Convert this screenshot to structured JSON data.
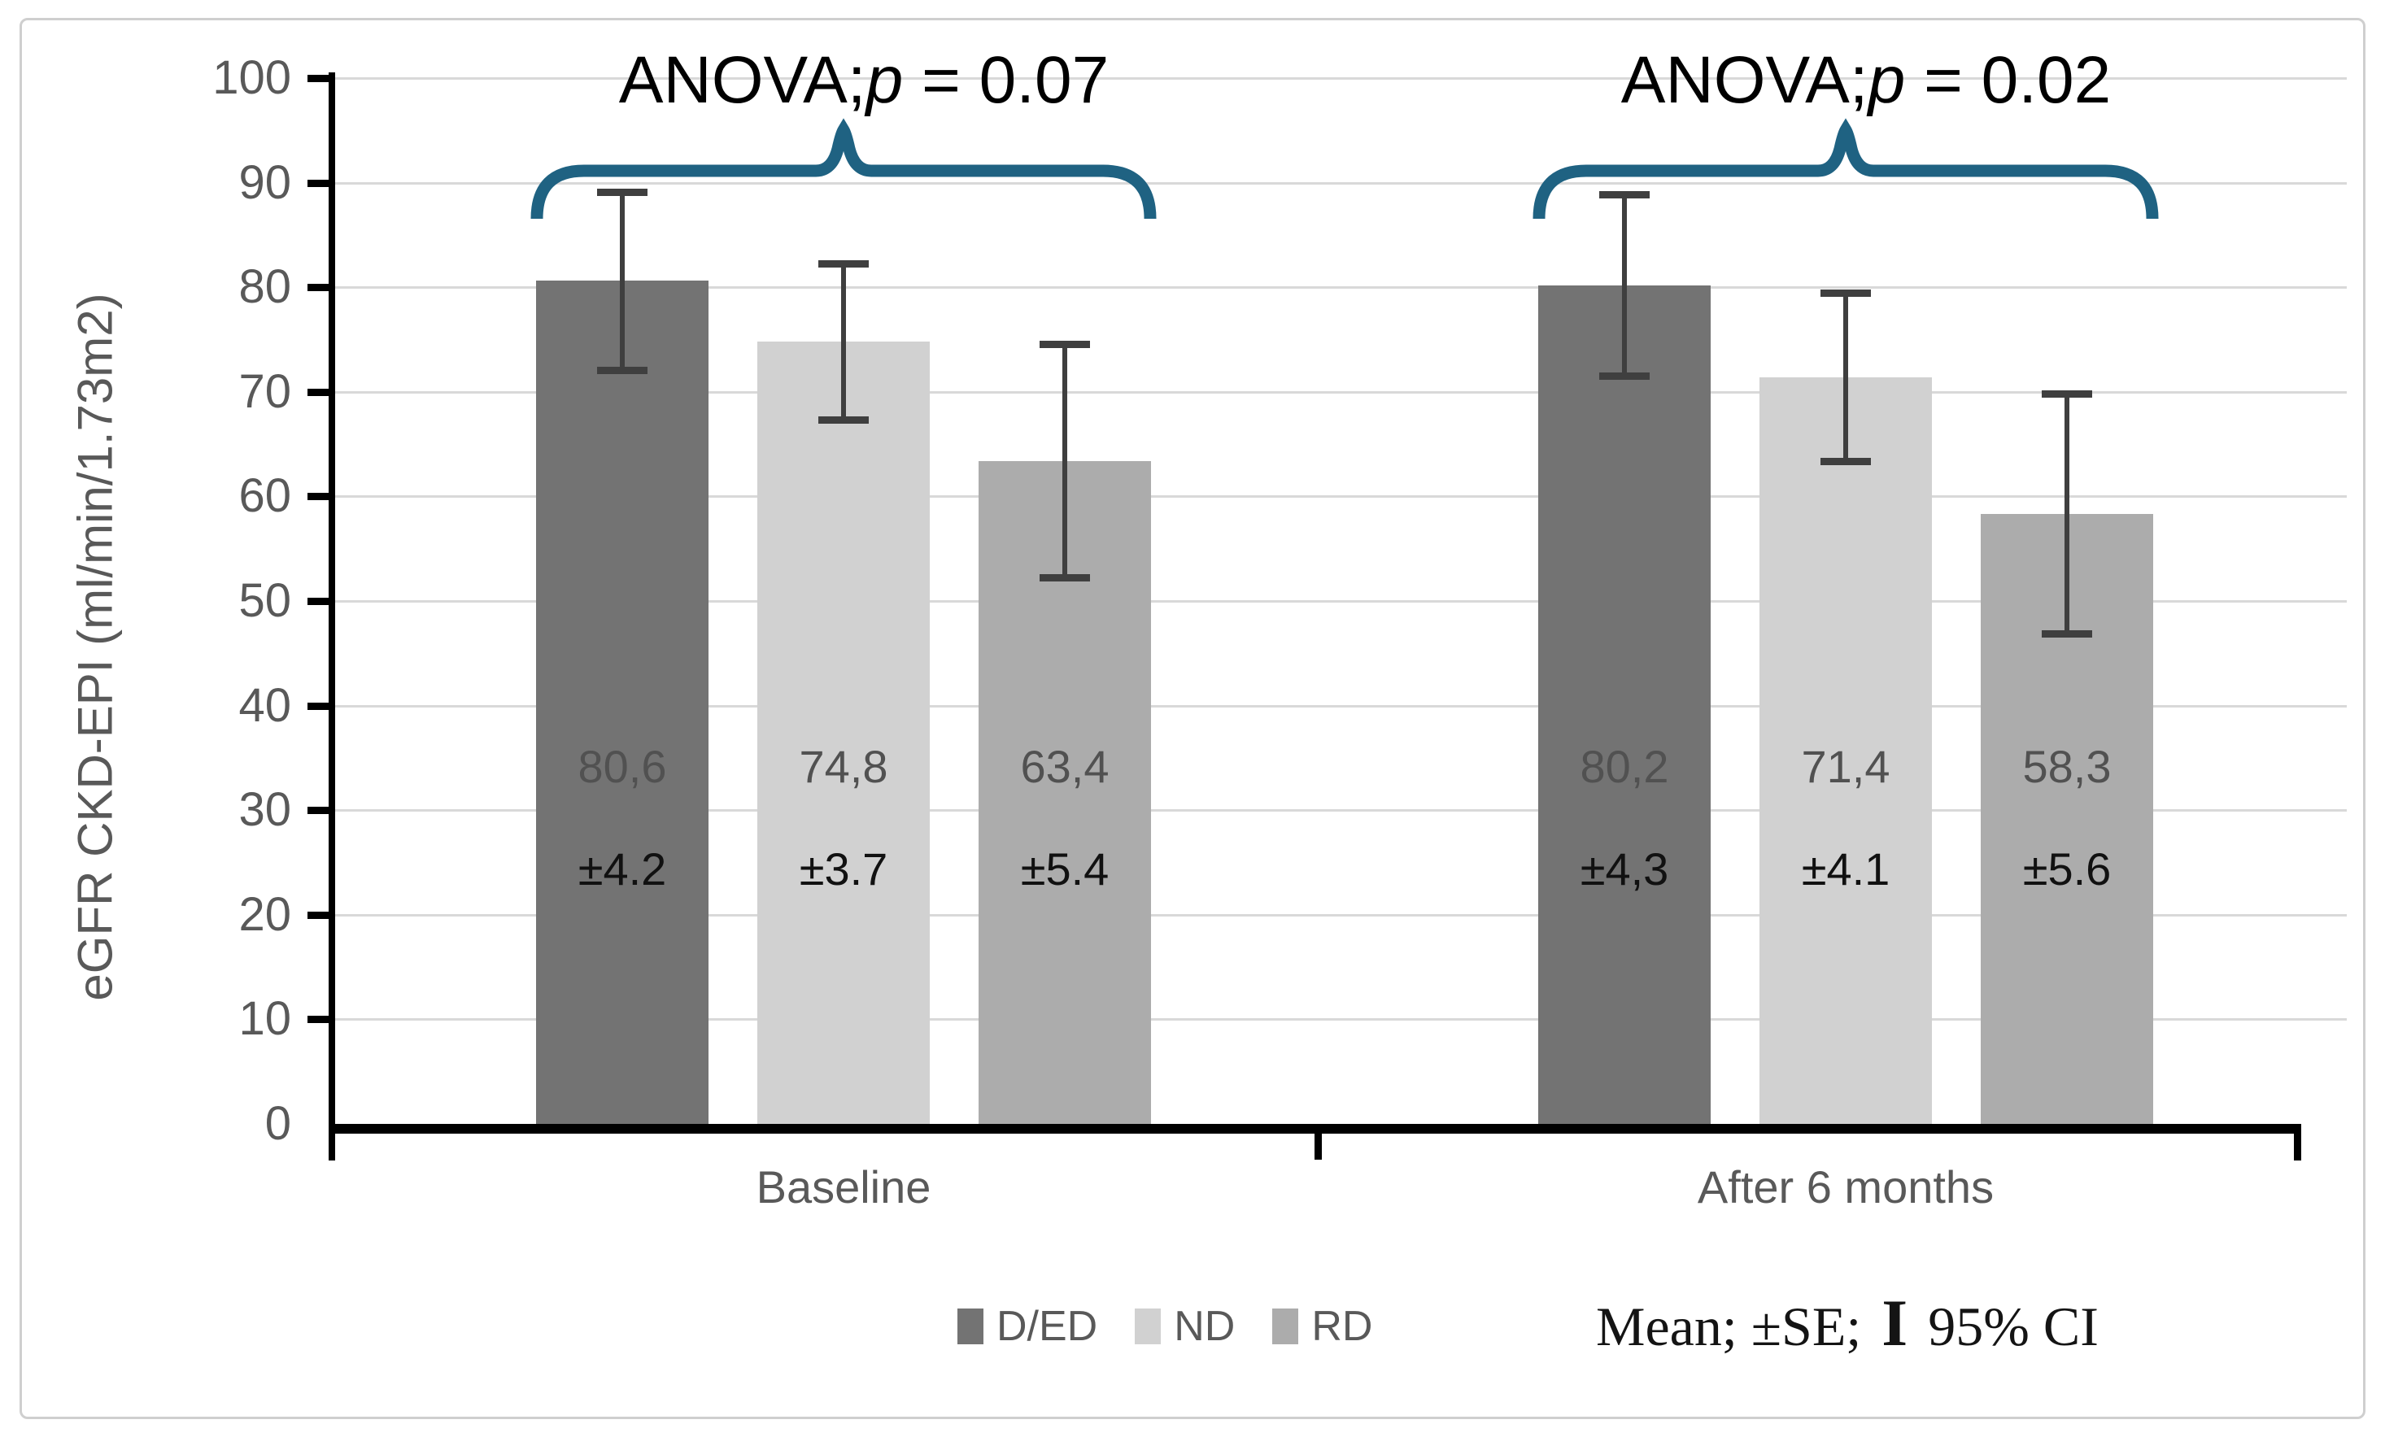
{
  "figure": {
    "background": "#ffffff",
    "border_color": "#cfcfcf"
  },
  "chart_data": {
    "type": "bar",
    "title": "",
    "ylabel": "eGFR CKD-EPI (ml/min/1.73m2)",
    "xlabel": "",
    "ylim": [
      0,
      100
    ],
    "yticks": [
      0,
      10,
      20,
      30,
      40,
      50,
      60,
      70,
      80,
      90,
      100
    ],
    "grid": "horizontal",
    "legend_position": "bottom",
    "error_bars": "95% CI",
    "categories": [
      "Baseline",
      "After 6 months"
    ],
    "series_names": [
      "D/ED",
      "ND",
      "RD"
    ],
    "series_colors": {
      "D/ED": "#737373",
      "ND": "#d1d1d1",
      "RD": "#acacac"
    },
    "groups": [
      {
        "label": "Baseline",
        "anova": {
          "prefix": "ANOVA;",
          "italic": "p",
          "rest": " = 0.07"
        },
        "bars": [
          {
            "series": "D/ED",
            "mean": 80.6,
            "se": 4.2,
            "mean_label": "80,6",
            "se_label": "±4.2",
            "ci_low": 72.0,
            "ci_high": 89.1
          },
          {
            "series": "ND",
            "mean": 74.8,
            "se": 3.7,
            "mean_label": "74,8",
            "se_label": "±3.7",
            "ci_low": 67.3,
            "ci_high": 82.3
          },
          {
            "series": "RD",
            "mean": 63.4,
            "se": 5.4,
            "mean_label": "63,4",
            "se_label": "±5.4",
            "ci_low": 52.2,
            "ci_high": 74.6
          }
        ]
      },
      {
        "label": "After 6 months",
        "anova": {
          "prefix": "ANOVA;",
          "italic": "p",
          "rest": " = 0.02"
        },
        "bars": [
          {
            "series": "D/ED",
            "mean": 80.2,
            "se": 4.3,
            "mean_label": "80,2",
            "se_label": "±4,3",
            "ci_low": 71.5,
            "ci_high": 88.9
          },
          {
            "series": "ND",
            "mean": 71.4,
            "se": 4.1,
            "mean_label": "71,4",
            "se_label": "±4.1",
            "ci_low": 63.3,
            "ci_high": 79.5
          },
          {
            "series": "RD",
            "mean": 58.3,
            "se": 5.6,
            "mean_label": "58,3",
            "se_label": "±5.6",
            "ci_low": 46.8,
            "ci_high": 69.8
          }
        ]
      }
    ],
    "colors": {
      "brace": "#1f6282",
      "error_bar": "#3f3f3f",
      "gridline": "#d9d9d9",
      "axis": "#000000",
      "tick_label": "#595959",
      "category_label": "#595959",
      "mean_label": "#515151",
      "se_label": "#111111",
      "anova_text": "#000000"
    }
  },
  "legend": {
    "items": [
      {
        "label": "D/ED",
        "color": "#737373"
      },
      {
        "label": "ND",
        "color": "#d1d1d1"
      },
      {
        "label": "RD",
        "color": "#acacac"
      }
    ],
    "note": {
      "prefix": "Mean; ±SE; ",
      "symbol": "I",
      "suffix": " 95% CI"
    }
  }
}
